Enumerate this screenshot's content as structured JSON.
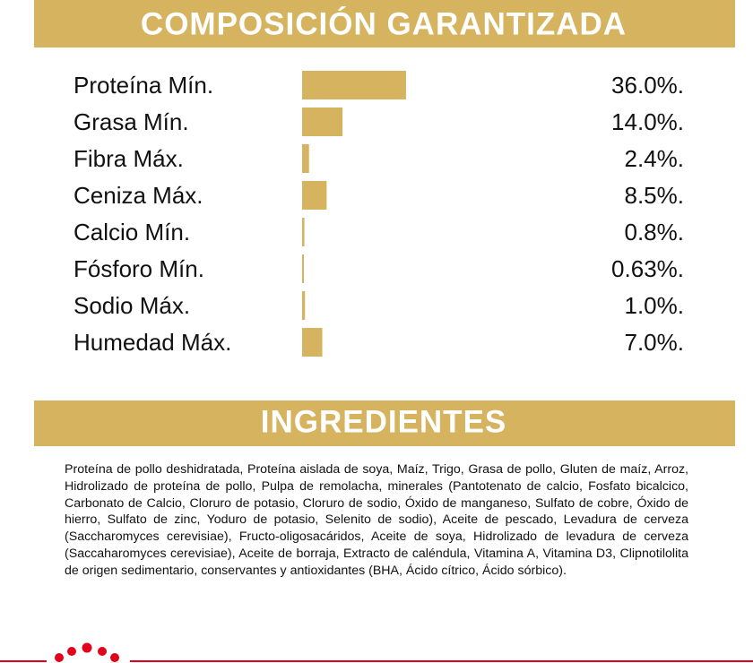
{
  "chart_data": {
    "type": "bar",
    "title": "COMPOSICIÓN GARANTIZADA",
    "categories": [
      "Proteína Mín.",
      "Grasa Mín.",
      "Fibra Máx.",
      "Ceniza Máx.",
      "Calcio Mín.",
      "Fósforo Mín.",
      "Sodio Máx.",
      "Humedad Máx."
    ],
    "values": [
      36.0,
      14.0,
      2.4,
      8.5,
      0.8,
      0.63,
      1.0,
      7.0
    ],
    "value_labels": [
      "36.0%.",
      "14.0%.",
      "2.4%.",
      "8.5%.",
      "0.8%.",
      "0.63%.",
      "1.0%.",
      "7.0%."
    ],
    "color": "#d6b45f"
  },
  "ingredients": {
    "title": "INGREDIENTES",
    "text": "Proteína de pollo deshidratada, Proteína aislada de soya, Maíz, Trigo, Grasa de pollo, Gluten de maíz, Arroz, Hidrolizado de proteína de pollo, Pulpa de remolacha, minerales (Pantotenato de calcio, Fosfato bicalcico, Carbonato de Calcio, Cloruro de potasio, Cloruro de sodio, Óxido de manganeso, Sulfato de cobre, Óxido de hierro, Sulfato de zinc, Yoduro de potasio, Selenito de sodio), Aceite de pescado, Levadura de cerveza (Saccharomyces cerevisiae), Fructo-oligosacáridos, Aceite de soya, Hidrolizado de levadura de cerveza (Saccaharomyces cerevisiae), Aceite de borraja, Extracto de caléndula, Vitamina A, Vitamina D3, Clipnotilolita de origen sedimentario, conservantes y antioxidantes (BHA, Ácido cítrico, Ácido sórbico)."
  }
}
